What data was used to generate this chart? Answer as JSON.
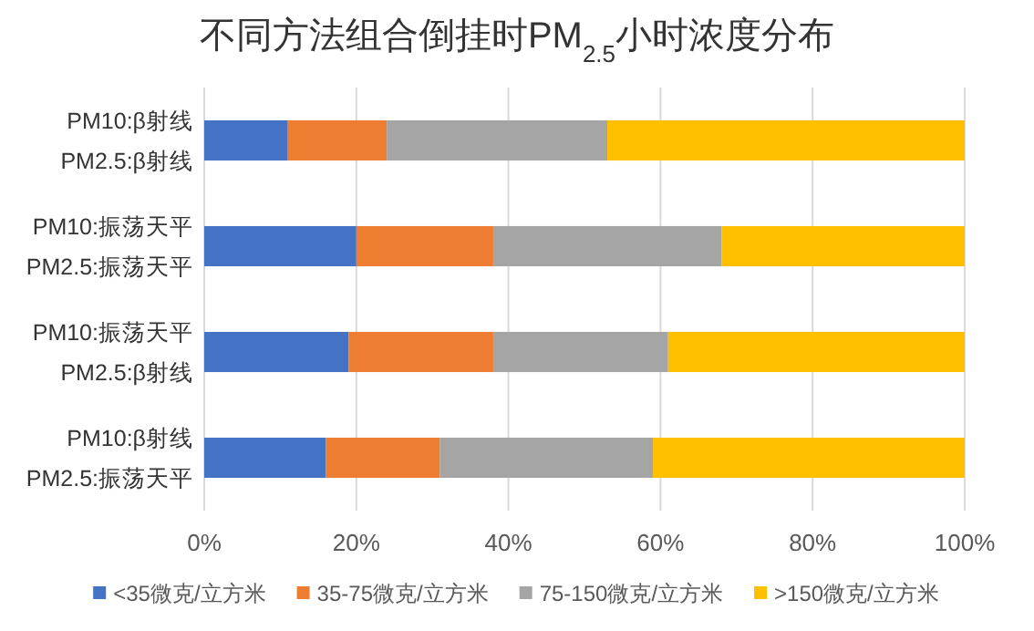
{
  "chart_data": {
    "type": "bar",
    "orientation": "horizontal",
    "stacked": true,
    "title": "不同方法组合倒挂时PM$_{2.5}$小时浓度分布",
    "categories": [
      "PM10:β射线\nPM2.5:β射线",
      "PM10:振荡天平\nPM2.5:振荡天平",
      "PM10:振荡天平\nPM2.5:β射线",
      "PM10:β射线\nPM2.5:振荡天平"
    ],
    "series": [
      {
        "name": "<35微克/立方米",
        "color": "#4472c4",
        "values": [
          11,
          20,
          19,
          16
        ]
      },
      {
        "name": "35-75微克/立方米",
        "color": "#ed7d31",
        "values": [
          13,
          18,
          19,
          15
        ]
      },
      {
        "name": "75-150微克/立方米",
        "color": "#a5a5a5",
        "values": [
          29,
          30,
          23,
          28
        ]
      },
      {
        "name": ">150微克/立方米",
        "color": "#ffc000",
        "values": [
          47,
          32,
          39,
          41
        ]
      }
    ],
    "xlim": [
      0,
      100
    ],
    "xticks": [
      {
        "value": 0,
        "label": "0%"
      },
      {
        "value": 20,
        "label": "20%"
      },
      {
        "value": 40,
        "label": "40%"
      },
      {
        "value": 60,
        "label": "60%"
      },
      {
        "value": 80,
        "label": "80%"
      },
      {
        "value": 100,
        "label": "100%"
      }
    ],
    "grid": "x",
    "legend": "bottom"
  }
}
